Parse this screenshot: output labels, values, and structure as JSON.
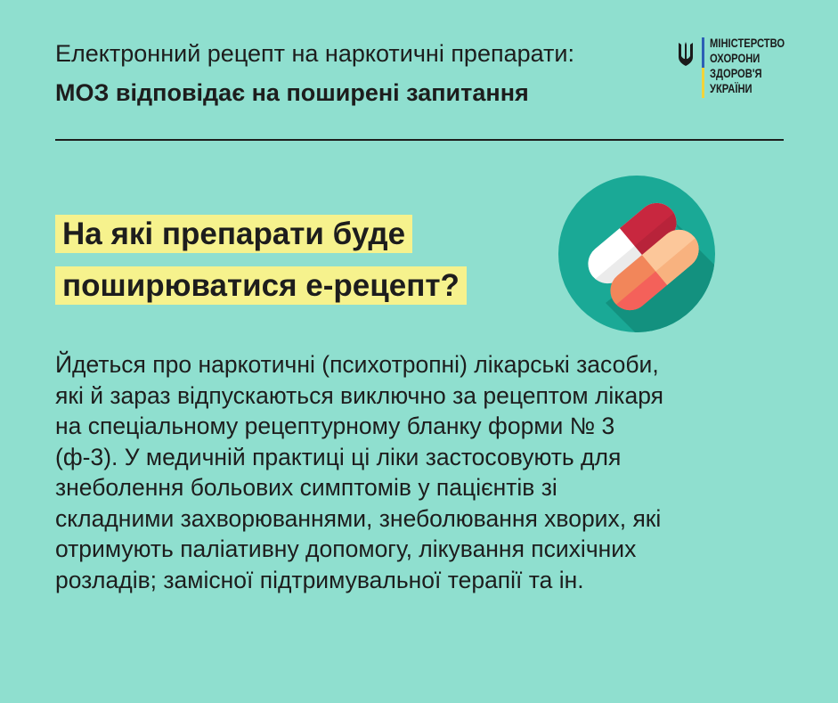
{
  "header": {
    "line1": "Електронний рецепт на наркотичні препарати:",
    "line2": "МОЗ відповідає на поширені запитання"
  },
  "logo": {
    "lines": [
      "МІНІСТЕРСТВО",
      "ОХОРОНИ",
      "ЗДОРОВ'Я",
      "УКРАЇНИ"
    ],
    "icon": "trident-icon"
  },
  "question": {
    "lines": [
      "На які препарати буде",
      "поширюватися е-рецепт?"
    ],
    "highlight_color": "#f6f28d"
  },
  "illustration": {
    "icon": "pills-icon"
  },
  "body": {
    "lines": [
      "Йдеться про наркотичні (психотропні) лікарські засоби,",
      "які й зараз відпускаються виключно за рецептом лікаря",
      "на спеціальному рецептурному бланку форми № 3",
      "(ф-3). У медичній практиці ці ліки застосовують для",
      "знеболення больових симптомів у пацієнтів зі",
      "складними захворюваннями, знеболювання хворих, які",
      "отримують паліативну допомогу, лікування психічних",
      "розладів; замісної підтримувальної терапії та ін."
    ]
  },
  "colors": {
    "background": "#8fdfcf",
    "circle": "#1aa996"
  }
}
